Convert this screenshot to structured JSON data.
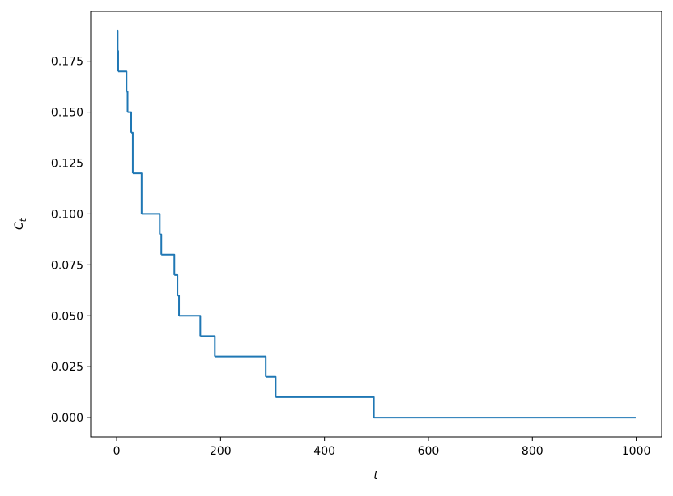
{
  "chart_data": {
    "type": "line",
    "drawstyle": "steps-post",
    "xlabel": "t",
    "ylabel": "C",
    "ylabel_subscript": "t",
    "x": [
      0,
      2,
      3,
      19,
      21,
      28,
      31,
      48,
      83,
      86,
      111,
      117,
      120,
      161,
      189,
      287,
      306,
      495,
      999
    ],
    "series": [
      {
        "color": "#1f77b4",
        "values": [
          0.19,
          0.18,
          0.17,
          0.16,
          0.15,
          0.14,
          0.12,
          0.1,
          0.09,
          0.08,
          0.07,
          0.06,
          0.05,
          0.04,
          0.03,
          0.02,
          0.01,
          0.0,
          0.0
        ]
      }
    ],
    "xlim": [
      -49.95,
      1048.95
    ],
    "ylim": [
      -0.0095,
      0.1995
    ],
    "xticks": [
      0,
      200,
      400,
      600,
      800,
      1000
    ],
    "yticks": [
      {
        "value": 0,
        "label": "0.000"
      },
      {
        "value": 0.025,
        "label": "0.025"
      },
      {
        "value": 0.05,
        "label": "0.050"
      },
      {
        "value": 0.075,
        "label": "0.075"
      },
      {
        "value": 0.1,
        "label": "0.100"
      },
      {
        "value": 0.125,
        "label": "0.125"
      },
      {
        "value": 0.15,
        "label": "0.150"
      },
      {
        "value": 0.175,
        "label": "0.175"
      }
    ],
    "grid": false
  }
}
